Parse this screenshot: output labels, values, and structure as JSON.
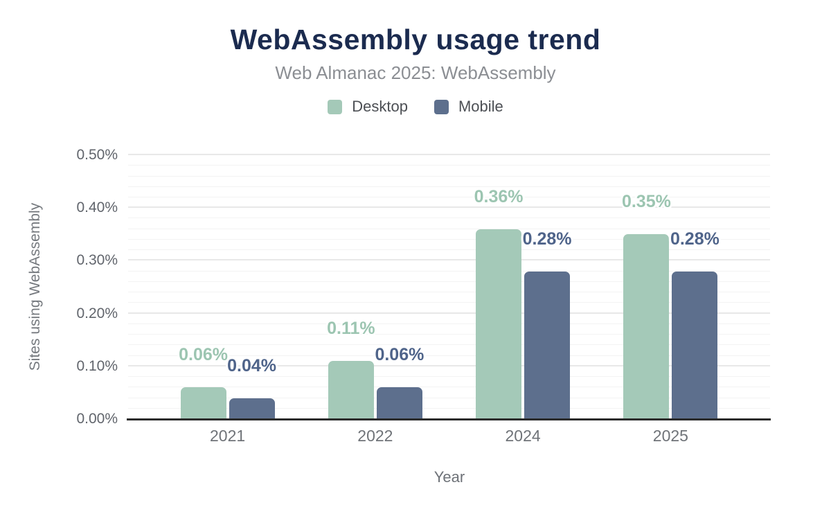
{
  "header": {
    "title": "WebAssembly usage trend",
    "subtitle": "Web Almanac 2025: WebAssembly"
  },
  "legend": [
    {
      "label": "Desktop",
      "color": "#a4c9b8"
    },
    {
      "label": "Mobile",
      "color": "#5d6f8d"
    }
  ],
  "chart_data": {
    "type": "bar",
    "title": "WebAssembly usage trend",
    "subtitle": "Web Almanac 2025: WebAssembly",
    "xlabel": "Year",
    "ylabel": "Sites using WebAssembly",
    "categories": [
      "2021",
      "2022",
      "2024",
      "2025"
    ],
    "series": [
      {
        "name": "Desktop",
        "color": "#a4c9b8",
        "label_color": "#9cc5b1",
        "values": [
          0.06,
          0.11,
          0.36,
          0.35
        ],
        "labels": [
          "0.06%",
          "0.11%",
          "0.36%",
          "0.35%"
        ]
      },
      {
        "name": "Mobile",
        "color": "#5d6f8d",
        "label_color": "#4f648a",
        "values": [
          0.04,
          0.06,
          0.28,
          0.28
        ],
        "labels": [
          "0.04%",
          "0.06%",
          "0.28%",
          "0.28%"
        ]
      }
    ],
    "y_ticks": {
      "values": [
        0,
        0.1,
        0.2,
        0.3,
        0.4,
        0.5
      ],
      "labels": [
        "0.00%",
        "0.10%",
        "0.20%",
        "0.30%",
        "0.40%",
        "0.50%"
      ]
    },
    "ylim": [
      0,
      0.5
    ],
    "minor_grid_step": 0.02,
    "grid": true,
    "legend_position": "top"
  }
}
